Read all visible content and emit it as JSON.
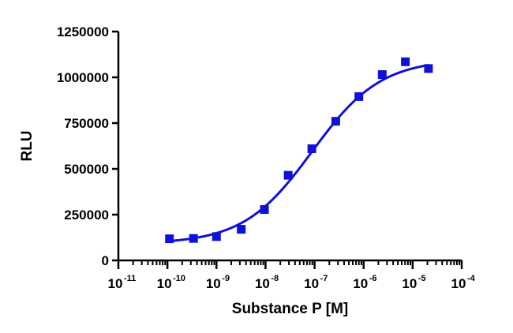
{
  "chart_data": {
    "type": "scatter",
    "title": "",
    "xlabel": "Substance P [M]",
    "ylabel": "RLU",
    "x_scale": "log10",
    "xlim": [
      1e-11,
      0.0001
    ],
    "ylim": [
      0,
      1250000
    ],
    "grid": false,
    "legend": "none",
    "x_ticks": [
      {
        "base": "10",
        "exp": "-11"
      },
      {
        "base": "10",
        "exp": "-10"
      },
      {
        "base": "10",
        "exp": "-9"
      },
      {
        "base": "10",
        "exp": "-8"
      },
      {
        "base": "10",
        "exp": "-7"
      },
      {
        "base": "10",
        "exp": "-6"
      },
      {
        "base": "10",
        "exp": "-5"
      },
      {
        "base": "10",
        "exp": "-4"
      }
    ],
    "y_ticks": [
      {
        "value": 0,
        "label": "0"
      },
      {
        "value": 250000,
        "label": "250000"
      },
      {
        "value": 500000,
        "label": "500000"
      },
      {
        "value": 750000,
        "label": "750000"
      },
      {
        "value": 1000000,
        "label": "1000000"
      },
      {
        "value": 1250000,
        "label": "1250000"
      }
    ],
    "series": [
      {
        "color": "#1010d8",
        "marker": "square",
        "points": [
          {
            "x": 1.1e-10,
            "y": 118000
          },
          {
            "x": 3.4e-10,
            "y": 120000
          },
          {
            "x": 1e-09,
            "y": 130000
          },
          {
            "x": 3.2e-09,
            "y": 170000
          },
          {
            "x": 9.5e-09,
            "y": 278000
          },
          {
            "x": 2.9e-08,
            "y": 465000
          },
          {
            "x": 8.8e-08,
            "y": 610000
          },
          {
            "x": 2.7e-07,
            "y": 760000
          },
          {
            "x": 8e-07,
            "y": 895000
          },
          {
            "x": 2.4e-06,
            "y": 1015000
          },
          {
            "x": 7.1e-06,
            "y": 1085000
          },
          {
            "x": 2.1e-05,
            "y": 1048000
          }
        ]
      }
    ],
    "fit": {
      "type": "four-parameter logistic",
      "color": "#1010d8",
      "bottom": 90000,
      "top": 1100000,
      "log_ec50": -7.05,
      "hill_slope": 0.62
    }
  }
}
